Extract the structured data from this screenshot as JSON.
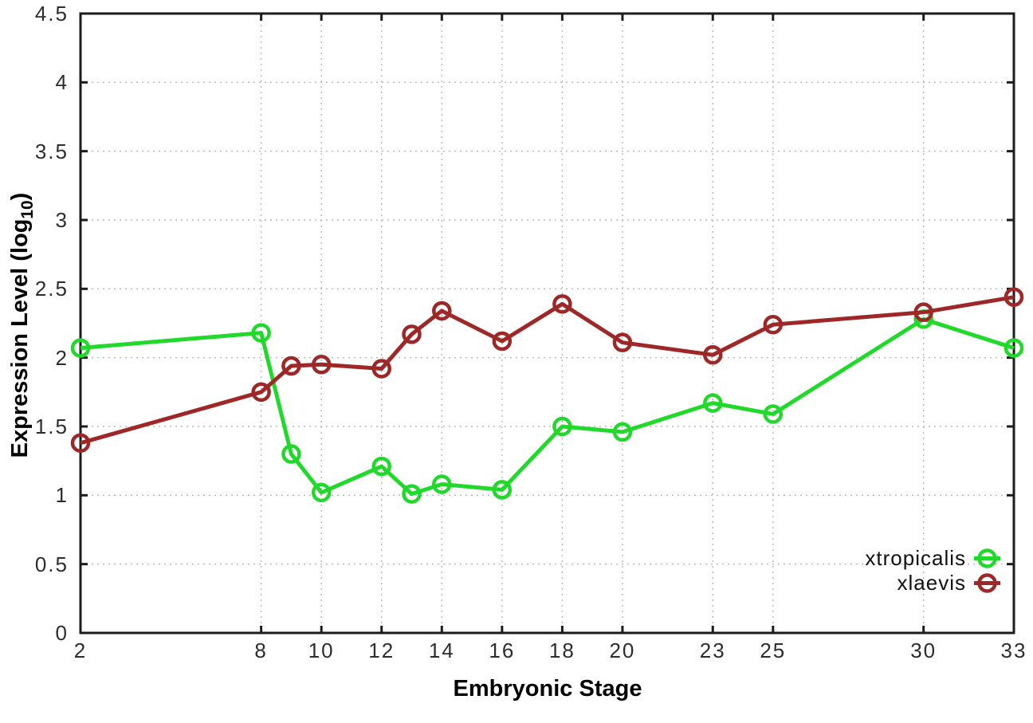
{
  "chart": {
    "ylabel_prefix": "Expression Level (log",
    "ylabel_sub": "10",
    "ylabel_suffix": ")"
  },
  "chart_data": {
    "type": "line",
    "title": "",
    "xlabel": "Embryonic Stage",
    "ylabel": "Expression Level (log10)",
    "x": [
      2,
      8,
      9,
      10,
      12,
      13,
      14,
      16,
      18,
      20,
      23,
      25,
      30,
      33
    ],
    "series": [
      {
        "name": "xtropicalis",
        "color": "#21d92b",
        "marker": "open-circle",
        "values": [
          2.07,
          2.18,
          1.3,
          1.02,
          1.21,
          1.01,
          1.08,
          1.04,
          1.5,
          1.46,
          1.67,
          1.59,
          2.28,
          2.07
        ]
      },
      {
        "name": "xlaevis",
        "color": "#9e2828",
        "marker": "open-circle",
        "values": [
          1.38,
          1.75,
          1.94,
          1.95,
          1.92,
          2.17,
          2.34,
          2.12,
          2.39,
          2.11,
          2.02,
          2.24,
          2.33,
          2.44
        ]
      }
    ],
    "xlim": [
      2,
      33
    ],
    "ylim": [
      0,
      4.5
    ],
    "x_ticks": [
      2,
      8,
      10,
      12,
      14,
      16,
      18,
      20,
      23,
      25,
      30,
      33
    ],
    "y_ticks": [
      0,
      0.5,
      1,
      1.5,
      2,
      2.5,
      3,
      3.5,
      4,
      4.5
    ],
    "y_tick_labels": [
      "0",
      "0.5",
      "1",
      "1.5",
      "2",
      "2.5",
      "3",
      "3.5",
      "4",
      "4.5"
    ],
    "grid": true,
    "legend_position": "inside-bottom-right",
    "axis_color": "#1c1c1c",
    "grid_color": "#b8b8b8"
  }
}
